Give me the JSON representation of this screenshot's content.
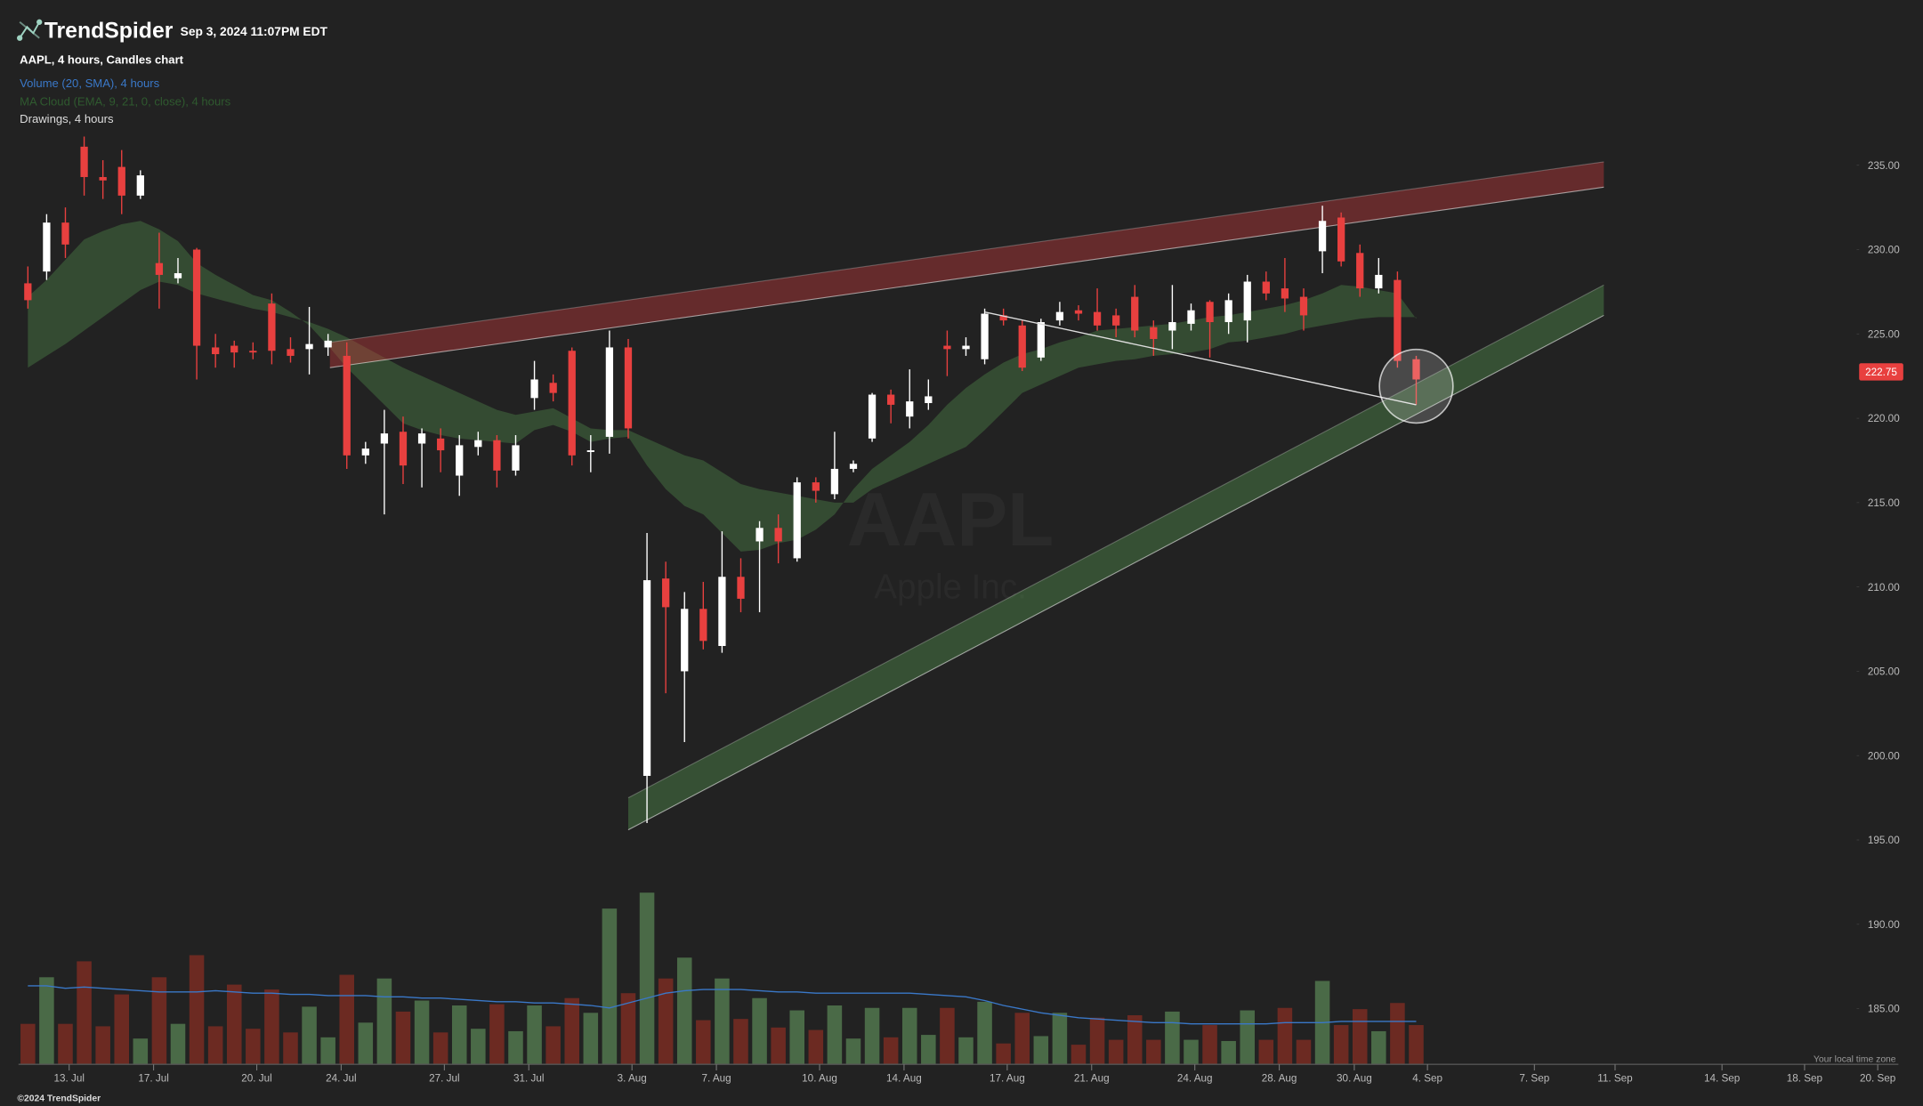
{
  "header": {
    "brand": "TrendSpider",
    "timestamp": "Sep 3, 2024 11:07PM EDT",
    "legend": [
      "AAPL, 4 hours, Candles chart",
      "Volume (20, SMA), 4 hours",
      "MA Cloud (EMA, 9, 21, 0, close), 4 hours",
      "Drawings, 4 hours"
    ]
  },
  "watermark": {
    "symbol": "AAPL",
    "name": "Apple Inc."
  },
  "footer": {
    "timezone": "Your local time zone",
    "copyright": "©2024 TrendSpider"
  },
  "chart_data": {
    "type": "candlestick",
    "open": [
      228,
      228.7,
      231.6,
      236.1,
      234.3,
      234.9,
      233.2,
      229.2,
      228.3,
      230,
      224.2,
      224.3,
      224,
      226.8,
      224.1,
      224.1,
      224.2,
      223.7,
      217.8,
      218.5,
      219.2,
      218.5,
      218.8,
      216.6,
      218.3,
      218.7,
      216.9,
      221.2,
      222.1,
      224,
      218,
      218.9,
      224.2,
      198.8,
      210.5,
      205,
      208.7,
      206.5,
      210.6,
      212.7,
      213.5,
      211.7,
      216.2,
      215.5,
      217,
      218.8,
      221.4,
      220.1,
      220.9,
      224.3,
      224.1,
      223.5,
      226.1,
      225.5,
      223.6,
      225.8,
      226.4,
      226.3,
      226.1,
      227.2,
      225.4,
      225.2,
      225.6,
      226.9,
      225.7,
      225.8,
      228.1,
      227.7,
      227.2,
      229.9,
      231.9,
      229.8,
      227.7,
      228.2,
      223.5
    ],
    "high": [
      229,
      232.1,
      232.5,
      236.7,
      235.3,
      235.9,
      234.7,
      231,
      229.5,
      230.1,
      225,
      224.6,
      224.5,
      227.4,
      224.8,
      226.6,
      225,
      224.5,
      218.6,
      220.5,
      220.1,
      219.4,
      219.4,
      219,
      219.2,
      219,
      219,
      223.4,
      222.6,
      224.2,
      219,
      225.2,
      224.7,
      213.2,
      211.5,
      209.7,
      210.3,
      213.3,
      211.7,
      213.9,
      214.3,
      216.5,
      216.5,
      219.2,
      217.5,
      221.5,
      221.7,
      222.9,
      222.3,
      225.2,
      224.8,
      226.5,
      226.5,
      225.8,
      225.9,
      226.9,
      226.7,
      227.7,
      226.5,
      227.9,
      225.8,
      227.9,
      226.8,
      227,
      227.4,
      228.5,
      228.7,
      229.5,
      227.7,
      232.6,
      232.2,
      230.3,
      229.5,
      228.7,
      223.7
    ],
    "low": [
      226.5,
      228.2,
      229.5,
      233.2,
      233,
      232.1,
      233,
      226.5,
      228,
      222.3,
      223,
      223,
      223.5,
      223.2,
      223.3,
      222.6,
      223.7,
      217,
      217.3,
      214.3,
      216.1,
      215.9,
      216.8,
      215.4,
      217.8,
      215.9,
      216.6,
      220.5,
      221,
      217.2,
      216.8,
      217.9,
      218.8,
      196,
      203.7,
      200.8,
      206.3,
      206.1,
      208.5,
      208.5,
      211.4,
      211.5,
      215,
      215.2,
      216.8,
      218.6,
      219.7,
      219.4,
      220.5,
      222.5,
      223.7,
      223.2,
      225.5,
      222.8,
      223.4,
      225.5,
      225.8,
      225.2,
      224.8,
      224.8,
      223.7,
      224.1,
      225.2,
      223.6,
      225,
      224.5,
      227,
      226.3,
      225.2,
      228.6,
      229,
      227.2,
      227.4,
      223,
      220.8
    ],
    "close": [
      227,
      231.6,
      230.3,
      234.3,
      234.1,
      233.2,
      234.4,
      228.5,
      228.6,
      224.3,
      223.8,
      223.9,
      223.9,
      224,
      223.7,
      224.4,
      224.6,
      217.8,
      218.2,
      219.1,
      217.2,
      219.1,
      218.1,
      218.4,
      218.7,
      216.9,
      218.4,
      222.3,
      221.5,
      217.8,
      218.1,
      224.2,
      219.4,
      210.4,
      208.8,
      208.7,
      206.8,
      210.6,
      209.3,
      213.5,
      212.7,
      216.2,
      215.7,
      217,
      217.3,
      221.4,
      220.8,
      221,
      221.3,
      224.1,
      224.3,
      226.2,
      225.8,
      223,
      225.7,
      226.3,
      226.2,
      225.5,
      225.5,
      225.2,
      224.7,
      225.7,
      226.4,
      225.7,
      227,
      228.1,
      227.4,
      227.1,
      226.1,
      231.7,
      229.3,
      227.7,
      228.5,
      223.4,
      222.3
    ],
    "volume": {
      "axis": "y2",
      "values": [
        6.6,
        14.2,
        6.6,
        16.8,
        6.2,
        11.4,
        4.2,
        14.2,
        6.6,
        17.8,
        6.2,
        13,
        5.8,
        12.2,
        5.2,
        9.4,
        4.4,
        14.6,
        6.8,
        14,
        8.6,
        10.4,
        5.2,
        9.6,
        5.8,
        9.8,
        5.4,
        9.6,
        6.2,
        10.8,
        8.4,
        25.4,
        11.6,
        28,
        14,
        17.4,
        7.2,
        14,
        7.4,
        10.8,
        6,
        8.8,
        5.6,
        9.6,
        4.2,
        9.2,
        4.4,
        9.2,
        4.8,
        9.2,
        4.4,
        10.2,
        3.4,
        8.4,
        4.6,
        8.4,
        3.2,
        7.6,
        4,
        8,
        4,
        8.6,
        4,
        6.4,
        3.8,
        8.8,
        4,
        9.2,
        4,
        13.6,
        6.4,
        9,
        5.4,
        10,
        6.4
      ],
      "sma": [
        12.8,
        12.8,
        12.4,
        12.6,
        12.4,
        12.2,
        12,
        11.8,
        11.8,
        11.8,
        12,
        11.8,
        11.6,
        11.6,
        11.4,
        11.4,
        11.2,
        11.2,
        11.2,
        11,
        11,
        10.8,
        10.8,
        10.6,
        10.4,
        10.2,
        10.2,
        10,
        10,
        9.8,
        9.6,
        9.2,
        10,
        10.8,
        11.6,
        12,
        12.2,
        12.2,
        12.2,
        12,
        11.8,
        11.8,
        11.6,
        11.6,
        11.6,
        11.6,
        11.6,
        11.6,
        11.4,
        11.2,
        11,
        10.4,
        9.6,
        9,
        8.4,
        8,
        7.6,
        7.4,
        7.2,
        7,
        6.8,
        6.8,
        6.6,
        6.6,
        6.6,
        6.6,
        6.6,
        6.8,
        6.8,
        6.8,
        7,
        7,
        7,
        7,
        7
      ]
    },
    "ma_cloud": {
      "fast": [
        227.2,
        228.2,
        229.4,
        230.6,
        231.1,
        231.5,
        231.7,
        231.2,
        230.5,
        229.2,
        228.5,
        227.9,
        227.3,
        227,
        226.3,
        225.5,
        224.3,
        223,
        221.9,
        220.8,
        219.7,
        219.3,
        219,
        218.8,
        218.7,
        218.6,
        218.5,
        219.3,
        219.6,
        219.2,
        218.6,
        218.8,
        218.9,
        217.2,
        215.8,
        214.8,
        214.3,
        213.2,
        212.1,
        212.2,
        212.6,
        212.8,
        213.4,
        214.3,
        215.8,
        217,
        217.8,
        218.6,
        219.6,
        220.8,
        221.8,
        222.6,
        223.3,
        223.8,
        224.1,
        224.5,
        224.8,
        225.2,
        225.3,
        225.4,
        225.5,
        225.6,
        225.8,
        226,
        226.1,
        226.3,
        226.5,
        226.7,
        227,
        227.4,
        227.9,
        227.8,
        227.6,
        227.4,
        225.9
      ],
      "slow": [
        223,
        223.7,
        224.4,
        225.2,
        226,
        226.8,
        227.6,
        228.1,
        227.9,
        227.4,
        227.1,
        226.8,
        226.5,
        226.3,
        226,
        225.7,
        225.3,
        224.8,
        224.2,
        223.6,
        223,
        222.5,
        222,
        221.5,
        221,
        220.5,
        220.2,
        220.4,
        220.6,
        220,
        219.4,
        219.3,
        219.3,
        218.8,
        218.3,
        217.8,
        217.5,
        216.8,
        216.1,
        215.8,
        215.6,
        215.4,
        215.2,
        215,
        215,
        215.8,
        216.3,
        216.8,
        217.3,
        217.8,
        218.3,
        219.3,
        220.4,
        221.5,
        222,
        222.5,
        223,
        223.2,
        223.4,
        223.5,
        223.7,
        223.8,
        223.9,
        224.1,
        224.5,
        224.6,
        224.8,
        225,
        225.3,
        225.5,
        225.7,
        225.9,
        226,
        226,
        226
      ],
      "up_color": "#3b5a38",
      "down_color": "#6a3434"
    },
    "drawings": {
      "channels": [
        {
          "color": "#b8383a",
          "upper": {
            "x": [
              16.1,
              84
            ],
            "y": [
              224.5,
              235.2
            ]
          },
          "lower": {
            "x": [
              16.1,
              84
            ],
            "y": [
              223,
              233.7
            ]
          }
        },
        {
          "color": "#4f8a4c",
          "upper": {
            "x": [
              32,
              84
            ],
            "y": [
              197.5,
              227.9
            ]
          },
          "lower": {
            "x": [
              32,
              84
            ],
            "y": [
              195.6,
              226.1
            ]
          }
        }
      ],
      "trendline": {
        "x": [
          51,
          74
        ],
        "y": [
          226.3,
          220.8
        ]
      },
      "circle": {
        "x": 74,
        "y": 221.9
      }
    },
    "last_price": 222.75,
    "up_color": "#ffffff",
    "down_color": "#e8403f",
    "volume_up_color": "#4a6a47",
    "volume_down_color": "#6c2a22",
    "volume_sma_color": "#3a78c8",
    "xlim": [
      -0.5,
      99.7
    ],
    "ylim": [
      181.7,
      236.8
    ],
    "y2lim": [
      0,
      35
    ],
    "yticks": [
      {
        "value": 185,
        "label": "185.00"
      },
      {
        "value": 190,
        "label": "190.00"
      },
      {
        "value": 195,
        "label": "195.00"
      },
      {
        "value": 200,
        "label": "200.00"
      },
      {
        "value": 205,
        "label": "205.00"
      },
      {
        "value": 210,
        "label": "210.00"
      },
      {
        "value": 215,
        "label": "215.00"
      },
      {
        "value": 220,
        "label": "220.00"
      },
      {
        "value": 225,
        "label": "225.00"
      },
      {
        "value": 230,
        "label": "230.00"
      },
      {
        "value": 235,
        "label": "235.00"
      }
    ],
    "xticks": [
      {
        "value": 2.2,
        "label": "13. Jul"
      },
      {
        "value": 6.7,
        "label": "17. Jul"
      },
      {
        "value": 12.2,
        "label": "20. Jul"
      },
      {
        "value": 16.7,
        "label": "24. Jul"
      },
      {
        "value": 22.2,
        "label": "27. Jul"
      },
      {
        "value": 26.7,
        "label": "31. Jul"
      },
      {
        "value": 32.2,
        "label": "3. Aug"
      },
      {
        "value": 36.7,
        "label": "7. Aug"
      },
      {
        "value": 42.2,
        "label": "10. Aug"
      },
      {
        "value": 46.7,
        "label": "14. Aug"
      },
      {
        "value": 52.2,
        "label": "17. Aug"
      },
      {
        "value": 56.7,
        "label": "21. Aug"
      },
      {
        "value": 62.2,
        "label": "24. Aug"
      },
      {
        "value": 66.7,
        "label": "28. Aug"
      },
      {
        "value": 70.7,
        "label": "30. Aug"
      },
      {
        "value": 74.6,
        "label": "4. Sep"
      },
      {
        "value": 80.3,
        "label": "7. Sep"
      },
      {
        "value": 84.6,
        "label": "11. Sep"
      },
      {
        "value": 90.3,
        "label": "14. Sep"
      },
      {
        "value": 94.7,
        "label": "18. Sep"
      },
      {
        "value": 98.6,
        "label": "20. Sep"
      }
    ]
  }
}
